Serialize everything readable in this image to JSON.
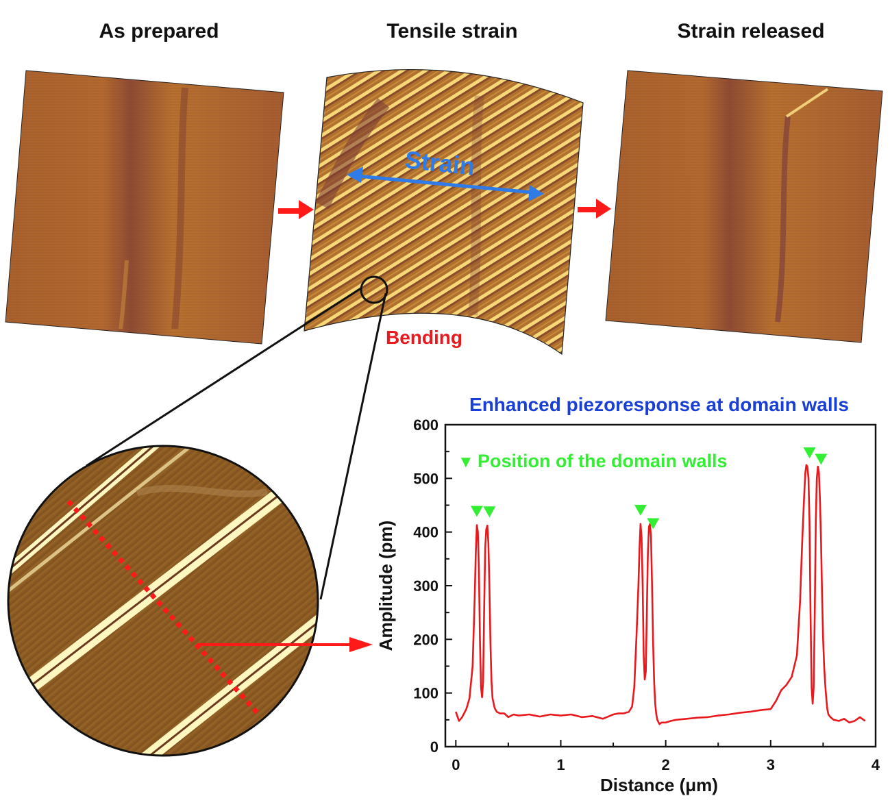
{
  "panels": {
    "as_prepared": "As prepared",
    "tensile_strain": "Tensile strain",
    "strain_released": "Strain released"
  },
  "annotations": {
    "strain": "Strain",
    "bending": "Bending",
    "chart_title": "Enhanced piezoresponse at domain walls",
    "legend_marker": "▼",
    "legend_text": "Position of the domain walls"
  },
  "colors": {
    "afm_dark": "#8a4a2a",
    "afm_mid": "#b8742e",
    "afm_bright": "#fff4b0",
    "arrow_red": "#ff1a1a",
    "strain_blue": "#2f7ce8",
    "title_blue": "#1a3fd6",
    "bending_red": "#e8181c",
    "marker_green": "#33ee33",
    "trace_red": "#e8181c"
  },
  "chart_data": {
    "type": "line",
    "title": "Enhanced piezoresponse at domain walls",
    "xlabel": "Distance (μm)",
    "ylabel": "Amplitude (pm)",
    "xlim": [
      -0.1,
      4
    ],
    "ylim": [
      0,
      600
    ],
    "xticks": [
      0,
      1,
      2,
      3,
      4
    ],
    "yticks": [
      0,
      100,
      200,
      300,
      400,
      500,
      600
    ],
    "grid": false,
    "legend": "top-left",
    "series": [
      {
        "x": [
          0,
          0.03,
          0.06,
          0.1,
          0.13,
          0.16,
          0.18,
          0.19,
          0.2,
          0.21,
          0.22,
          0.23,
          0.24,
          0.25,
          0.26,
          0.27,
          0.28,
          0.29,
          0.3,
          0.31,
          0.32,
          0.33,
          0.34,
          0.35,
          0.37,
          0.39,
          0.42,
          0.46,
          0.5,
          0.55,
          0.6,
          0.7,
          0.8,
          0.9,
          1.0,
          1.1,
          1.2,
          1.3,
          1.4,
          1.5,
          1.55,
          1.6,
          1.65,
          1.68,
          1.7,
          1.72,
          1.74,
          1.75,
          1.76,
          1.77,
          1.78,
          1.79,
          1.8,
          1.81,
          1.82,
          1.83,
          1.84,
          1.85,
          1.86,
          1.87,
          1.88,
          1.89,
          1.9,
          1.91,
          1.92,
          1.94,
          1.96,
          2.0,
          2.05,
          2.1,
          2.2,
          2.3,
          2.4,
          2.5,
          2.6,
          2.7,
          2.8,
          2.9,
          3.0,
          3.05,
          3.1,
          3.15,
          3.2,
          3.25,
          3.28,
          3.3,
          3.32,
          3.33,
          3.34,
          3.35,
          3.36,
          3.37,
          3.38,
          3.39,
          3.4,
          3.41,
          3.42,
          3.43,
          3.44,
          3.45,
          3.46,
          3.47,
          3.48,
          3.49,
          3.5,
          3.51,
          3.52,
          3.53,
          3.54,
          3.55,
          3.57,
          3.6,
          3.65,
          3.7,
          3.75,
          3.8,
          3.85,
          3.9
        ],
        "values": [
          65,
          48,
          55,
          70,
          90,
          150,
          280,
          360,
          413,
          400,
          330,
          200,
          110,
          92,
          120,
          260,
          370,
          405,
          412,
          380,
          300,
          190,
          120,
          90,
          72,
          65,
          62,
          62,
          55,
          60,
          58,
          60,
          56,
          60,
          58,
          60,
          55,
          57,
          52,
          60,
          62,
          62,
          65,
          75,
          110,
          200,
          300,
          370,
          415,
          390,
          300,
          170,
          125,
          140,
          250,
          360,
          410,
          415,
          390,
          300,
          190,
          120,
          80,
          60,
          50,
          42,
          45,
          45,
          48,
          50,
          52,
          54,
          55,
          58,
          60,
          63,
          65,
          68,
          70,
          85,
          105,
          115,
          130,
          170,
          270,
          380,
          470,
          510,
          525,
          522,
          500,
          420,
          250,
          110,
          80,
          110,
          250,
          420,
          500,
          522,
          510,
          460,
          380,
          280,
          200,
          150,
          115,
          90,
          70,
          60,
          55,
          50,
          48,
          52,
          45,
          48,
          55,
          48
        ],
        "color": "#e8181c"
      }
    ],
    "domain_wall_positions": [
      0.2,
      0.32,
      1.76,
      1.88,
      3.37,
      3.48
    ]
  }
}
